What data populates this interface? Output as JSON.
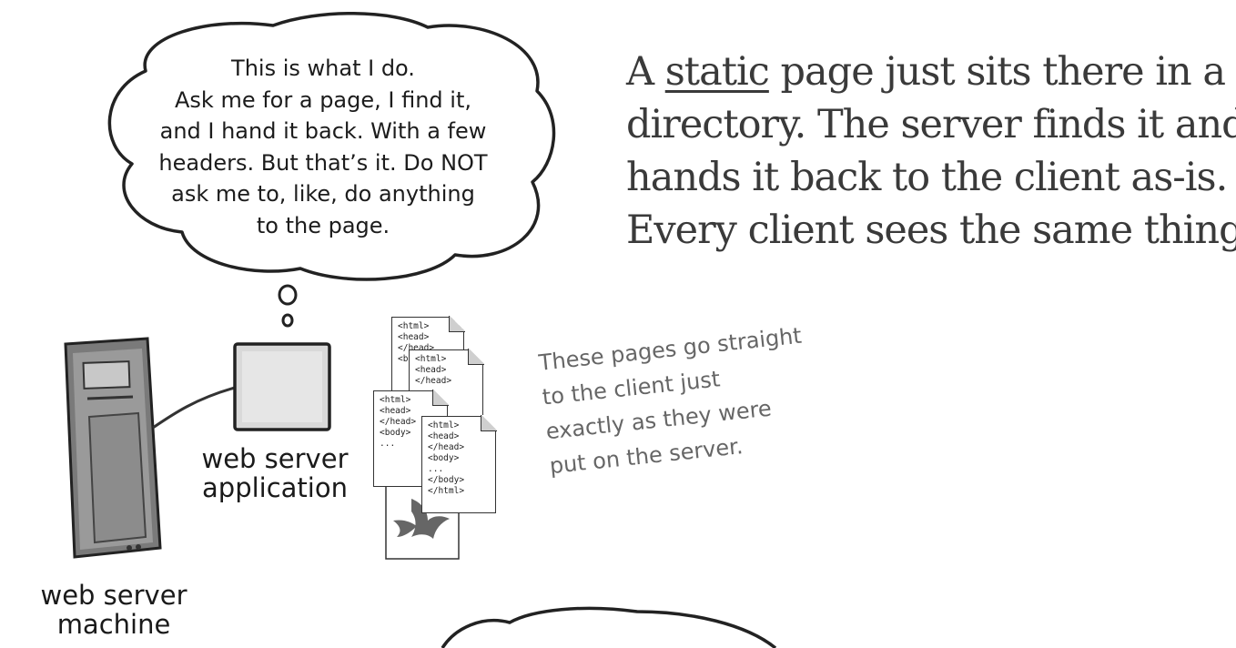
{
  "thought_bubble": {
    "lines": [
      "This is what I do.",
      "Ask me for a page, I find it,",
      "and I hand it back. With a few",
      "headers. But that’s it. Do NOT",
      "ask me to, like, do anything",
      "to the page."
    ]
  },
  "headline": {
    "line1_pre": "A ",
    "line1_underlined": "static",
    "line1_post": " page just sits there in a",
    "line2": "directory. The server finds it and",
    "line3": "hands it back to the client as-is.",
    "line4": "Every client sees the same thing."
  },
  "handwritten_note": {
    "lines": [
      "These pages go straight",
      "to the client just",
      "exactly as they were",
      "put on the server."
    ]
  },
  "labels": {
    "web_server_application": [
      "web server",
      "application"
    ],
    "web_server_machine": [
      "web server",
      "machine"
    ]
  },
  "docs": {
    "doc_a": [
      "<html>",
      "<head>",
      "</head>",
      "<b"
    ],
    "doc_b": [
      "<html>",
      "<head>",
      "</head>"
    ],
    "doc_c": [
      "<html>",
      "<head>",
      "</head>",
      "",
      "<body>",
      "..."
    ],
    "doc_d": [
      "<html>",
      "<head>",
      "</head>",
      "",
      "<body>",
      "...",
      "</body>",
      "</html>"
    ]
  }
}
